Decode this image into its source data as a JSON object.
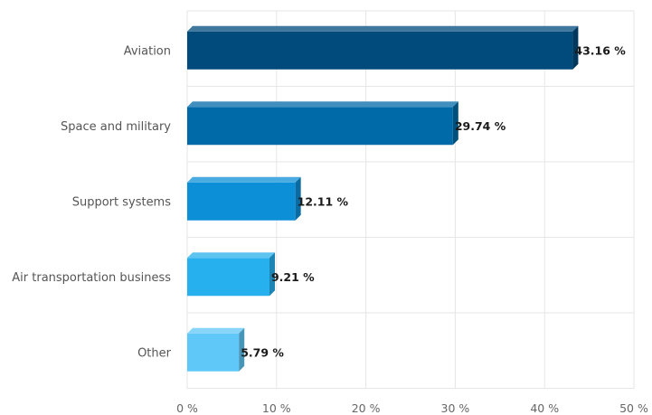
{
  "chart_data": {
    "type": "bar",
    "orientation": "horizontal",
    "style": "3d",
    "categories": [
      "Aviation",
      "Space and military",
      "Support systems",
      "Air transportation business",
      "Other"
    ],
    "values": [
      43.16,
      29.74,
      12.11,
      9.21,
      5.79
    ],
    "value_labels": [
      "43.16 %",
      "29.74 %",
      "12.11 %",
      "9.21 %",
      "5.79 %"
    ],
    "value_suffix": " %",
    "title": "",
    "xlabel": "",
    "ylabel": "",
    "xlim": [
      0,
      50
    ],
    "x_ticks": [
      0,
      10,
      20,
      30,
      40,
      50
    ],
    "x_tick_labels": [
      "0 %",
      "10 %",
      "20 %",
      "30 %",
      "40 %",
      "50 %"
    ],
    "grid": true,
    "legend": "none",
    "colors": [
      "#004a7c",
      "#006aa8",
      "#0d8fd8",
      "#27b0ee",
      "#5fc8f8"
    ],
    "grid_color": "#e6e6e6"
  }
}
